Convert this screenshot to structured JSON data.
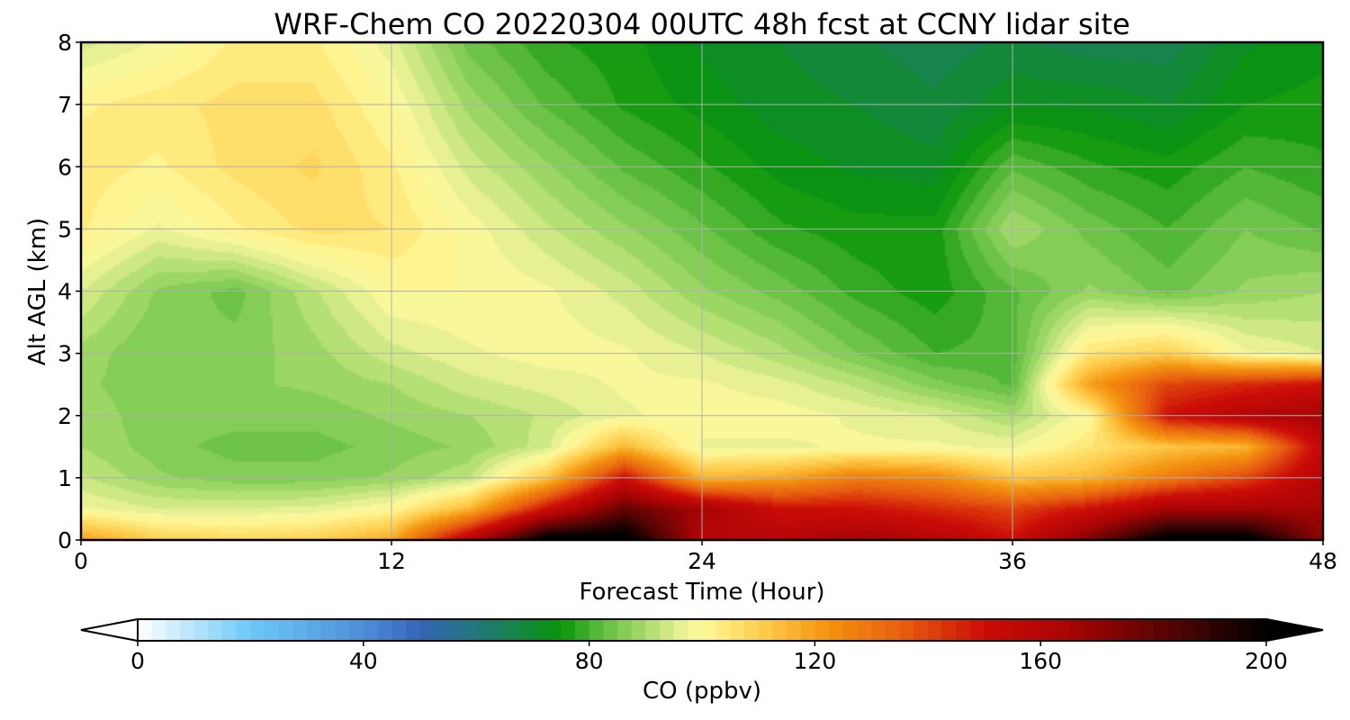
{
  "chart_data": {
    "type": "heatmap",
    "plot_style": "filled contour",
    "title": "WRF-Chem CO  20220304 00UTC 48h fcst at CCNY lidar site",
    "xlabel": "Forecast Time (Hour)",
    "ylabel": "Alt AGL (km)",
    "xlim": [
      0,
      48
    ],
    "ylim": [
      0,
      8
    ],
    "xticks": [
      "0",
      "12",
      "24",
      "36",
      "48"
    ],
    "yticks": [
      "0",
      "1",
      "2",
      "3",
      "4",
      "5",
      "6",
      "7",
      "8"
    ],
    "grid": true,
    "x": [
      0,
      3,
      6,
      9,
      12,
      15,
      18,
      21,
      24,
      27,
      30,
      33,
      36,
      39,
      42,
      45,
      48
    ],
    "y": [
      0,
      0.5,
      1,
      1.5,
      2,
      2.5,
      3,
      4,
      5,
      6,
      7,
      8
    ],
    "z": [
      [
        120,
        110,
        108,
        110,
        118,
        160,
        205,
        205,
        160,
        160,
        165,
        160,
        150,
        175,
        205,
        205,
        170
      ],
      [
        98,
        95,
        95,
        96,
        100,
        115,
        150,
        180,
        165,
        150,
        150,
        145,
        140,
        150,
        165,
        165,
        165
      ],
      [
        93,
        88,
        86,
        86,
        88,
        92,
        112,
        150,
        115,
        118,
        128,
        125,
        112,
        115,
        128,
        140,
        160
      ],
      [
        90,
        86,
        84,
        84,
        86,
        88,
        94,
        115,
        97,
        97,
        98,
        98,
        97,
        105,
        112,
        115,
        155
      ],
      [
        89,
        86,
        86,
        86,
        88,
        90,
        93,
        97,
        99,
        99,
        97,
        95,
        90,
        100,
        150,
        160,
        165
      ],
      [
        88,
        86,
        87,
        88,
        90,
        94,
        96,
        98,
        98,
        96,
        92,
        86,
        82,
        120,
        140,
        145,
        150
      ],
      [
        89,
        85,
        86,
        89,
        94,
        97,
        99,
        98,
        95,
        91,
        85,
        80,
        81,
        105,
        110,
        98,
        95
      ],
      [
        95,
        87,
        84,
        92,
        100,
        100,
        98,
        94,
        88,
        84,
        79,
        76,
        82,
        88,
        84,
        88,
        90
      ],
      [
        103,
        97,
        102,
        106,
        105,
        99,
        93,
        88,
        83,
        78,
        76,
        76,
        90,
        84,
        80,
        85,
        82
      ],
      [
        104,
        102,
        106,
        108,
        103,
        94,
        88,
        82,
        78,
        74,
        72,
        71,
        82,
        78,
        76,
        80,
        78
      ],
      [
        102,
        104,
        106,
        106,
        100,
        89,
        82,
        77,
        74,
        71,
        70,
        68,
        72,
        72,
        70,
        75,
        76
      ],
      [
        94,
        98,
        103,
        103,
        96,
        84,
        78,
        76,
        72,
        70,
        68,
        66,
        68,
        66,
        66,
        72,
        74
      ]
    ],
    "colorbar": {
      "label": "CO  (ppbv)",
      "ticks": [
        "0",
        "40",
        "80",
        "120",
        "160",
        "200"
      ],
      "vmin": 0,
      "vmax": 200,
      "extend": "both",
      "under_color": "#ffffff",
      "over_color": "#000000",
      "colors": [
        {
          "v": 0,
          "c": "#ffffff"
        },
        {
          "v": 20,
          "c": "#6cc9f8"
        },
        {
          "v": 40,
          "c": "#4e8ed8"
        },
        {
          "v": 50,
          "c": "#3465b8"
        },
        {
          "v": 62,
          "c": "#1e7a6e"
        },
        {
          "v": 75,
          "c": "#089408"
        },
        {
          "v": 82,
          "c": "#5cbc3c"
        },
        {
          "v": 90,
          "c": "#a8dc6c"
        },
        {
          "v": 97,
          "c": "#eef498"
        },
        {
          "v": 100,
          "c": "#fff99a"
        },
        {
          "v": 110,
          "c": "#ffd050"
        },
        {
          "v": 122,
          "c": "#f49410"
        },
        {
          "v": 135,
          "c": "#e86010"
        },
        {
          "v": 150,
          "c": "#cc0c08"
        },
        {
          "v": 165,
          "c": "#a80404"
        },
        {
          "v": 185,
          "c": "#4a0404"
        },
        {
          "v": 200,
          "c": "#000000"
        }
      ]
    }
  }
}
